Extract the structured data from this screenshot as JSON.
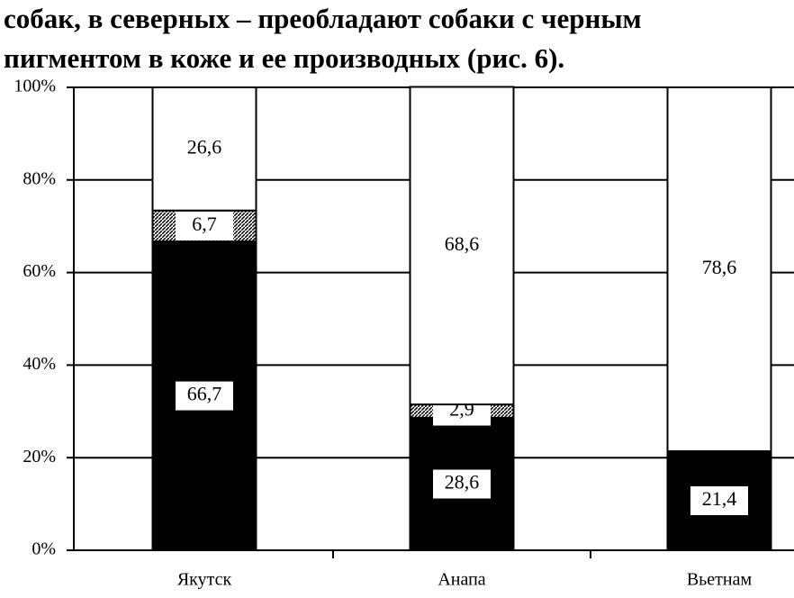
{
  "text_lines": [
    "собак, в северных – преобладают собаки с черным",
    "пигментом в коже и ее производных (рис. 6)."
  ],
  "chart_data": {
    "type": "stacked-bar",
    "categories": [
      "Якутск",
      "Анапа",
      "Вьетнам"
    ],
    "series": [
      {
        "color": "#000000",
        "values": [
          66.7,
          28.6,
          21.4
        ],
        "value_labels": [
          "66,7",
          "28,6",
          "21,4"
        ]
      },
      {
        "color": "#888888",
        "values": [
          6.7,
          2.9,
          0
        ],
        "value_labels": [
          "6,7",
          "2,9",
          null
        ]
      },
      {
        "color": "#ffffff",
        "values": [
          26.6,
          68.6,
          78.6
        ],
        "value_labels": [
          "26,6",
          "68,6",
          "78,6"
        ]
      }
    ],
    "ylim": [
      0,
      100
    ],
    "yticks": [
      {
        "value": 0,
        "label": "0%"
      },
      {
        "value": 20,
        "label": "20%"
      },
      {
        "value": 40,
        "label": "40%"
      },
      {
        "value": 60,
        "label": "60%"
      },
      {
        "value": 80,
        "label": "80%"
      },
      {
        "value": 100,
        "label": "100%"
      }
    ],
    "grid": true
  }
}
